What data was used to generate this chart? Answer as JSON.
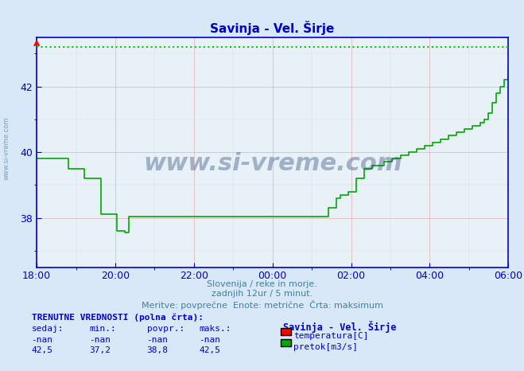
{
  "title": "Savinja - Vel. Širje",
  "bg_color": "#d8e8f8",
  "plot_bg_color": "#e8f0f8",
  "grid_color_major": "#c0c0c0",
  "grid_color_minor": "#e0d0d0",
  "line_color_flow": "#00aa00",
  "line_color_temp": "#ff0000",
  "axis_color": "#0000cc",
  "title_color": "#0000cc",
  "xlabel_color": "#4080a0",
  "x_tick_labels": [
    "18:00",
    "20:00",
    "22:00",
    "00:00",
    "02:00",
    "04:00",
    "06:00"
  ],
  "x_tick_positions": [
    0,
    24,
    48,
    72,
    96,
    120,
    144
  ],
  "y_ticks": [
    38,
    40,
    42
  ],
  "ylim": [
    36.5,
    43.5
  ],
  "xlim": [
    0,
    144
  ],
  "subtitle1": "Slovenija / reke in morje.",
  "subtitle2": "zadnjih 12ur / 5 minut.",
  "subtitle3": "Meritve: povprečne  Enote: metrične  Črta: maksimum",
  "label_trenutne": "TRENUTNE VREDNOSTI (polna črta):",
  "col_headers": [
    "sedaj:",
    "min.:",
    "povpr.:",
    "maks.:"
  ],
  "row1_vals": [
    "-nan",
    "-nan",
    "-nan",
    "-nan"
  ],
  "row2_vals": [
    "42,5",
    "37,2",
    "38,8",
    "42,5"
  ],
  "legend_title": "Savinja - Vel. Širje",
  "legend_items": [
    {
      "label": "temperatura[C]",
      "color": "#ff0000"
    },
    {
      "label": "pretok[m3/s]",
      "color": "#00aa00"
    }
  ],
  "watermark": "www.si-vreme.com",
  "flow_data": [
    39.8,
    39.8,
    39.8,
    39.8,
    39.8,
    39.8,
    39.8,
    39.8,
    39.5,
    39.5,
    39.5,
    39.5,
    39.2,
    39.2,
    39.2,
    39.2,
    38.1,
    38.1,
    38.1,
    38.1,
    37.6,
    37.6,
    37.55,
    38.05,
    38.05,
    38.05,
    38.05,
    38.05,
    38.05,
    38.05,
    38.05,
    38.05,
    38.05,
    38.05,
    38.05,
    38.05,
    38.05,
    38.05,
    38.05,
    38.05,
    38.05,
    38.05,
    38.05,
    38.05,
    38.05,
    38.05,
    38.05,
    38.05,
    38.05,
    38.05,
    38.05,
    38.05,
    38.05,
    38.05,
    38.05,
    38.05,
    38.05,
    38.05,
    38.05,
    38.05,
    38.05,
    38.05,
    38.05,
    38.05,
    38.05,
    38.05,
    38.05,
    38.05,
    38.05,
    38.05,
    38.05,
    38.05,
    38.05,
    38.3,
    38.3,
    38.6,
    38.7,
    38.7,
    38.8,
    38.8,
    39.2,
    39.2,
    39.5,
    39.5,
    39.6,
    39.6,
    39.6,
    39.7,
    39.7,
    39.8,
    39.8,
    39.9,
    39.9,
    40.0,
    40.0,
    40.1,
    40.1,
    40.2,
    40.2,
    40.3,
    40.3,
    40.4,
    40.4,
    40.5,
    40.5,
    40.6,
    40.6,
    40.7,
    40.7,
    40.8,
    40.8,
    40.9,
    41.0,
    41.2,
    41.5,
    41.8,
    42.0,
    42.2,
    42.5
  ],
  "max_line_y": 43.2,
  "max_line_color": "#00cc00",
  "max_line_style": "dotted"
}
